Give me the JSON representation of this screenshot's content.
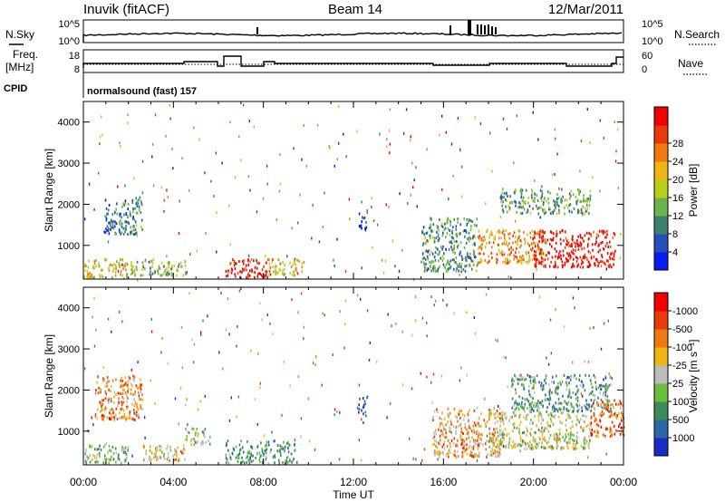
{
  "header": {
    "station": "Inuvik (fitACF)",
    "beam": "Beam 14",
    "date": "12/Mar/2011"
  },
  "noise_panel": {
    "left_label": "N.Sky",
    "right_label": "N.Search",
    "left_ticks": [
      "10^5",
      "10^0"
    ],
    "right_ticks": [
      "10^5",
      "10^0"
    ]
  },
  "freq_panel": {
    "left_label_1": "Freq.",
    "left_label_2": "[MHz]",
    "left_ticks": [
      "18",
      "8"
    ],
    "right_label": "Nave",
    "right_ticks": [
      "60",
      "0"
    ],
    "cpid_label": "CPID",
    "cpid_text": "normalsound (fast) 157"
  },
  "chart_data": [
    {
      "type": "heatmap",
      "name_printed": "",
      "ylabel": "Slant Range [km]",
      "xlabel": "",
      "x_range_hours": [
        0,
        24
      ],
      "ylim": [
        180,
        4500
      ],
      "yticks": [
        "1000",
        "2000",
        "3000",
        "4000"
      ],
      "colorbar": {
        "label": "Power [dB]",
        "ticks": [
          "4",
          "8",
          "12",
          "16",
          "20",
          "24",
          "28"
        ],
        "colors": [
          "#0a1cf0",
          "#2550b8",
          "#3d8070",
          "#6ab44a",
          "#b8cf1a",
          "#f0b414",
          "#f07a10",
          "#e83a0c",
          "#f00000"
        ]
      },
      "clusters": [
        {
          "t0": 0.0,
          "t1": 2.0,
          "r0": 250,
          "r1": 700,
          "level": 0.55
        },
        {
          "t0": 0.9,
          "t1": 2.6,
          "r0": 1300,
          "r1": 2200,
          "level": 0.25
        },
        {
          "t0": 2.0,
          "t1": 4.6,
          "r0": 300,
          "r1": 700,
          "level": 0.4
        },
        {
          "t0": 6.3,
          "t1": 8.3,
          "r0": 250,
          "r1": 700,
          "level": 0.9
        },
        {
          "t0": 8.2,
          "t1": 9.8,
          "r0": 300,
          "r1": 700,
          "level": 0.6
        },
        {
          "t0": 12.2,
          "t1": 12.6,
          "r0": 1400,
          "r1": 1900,
          "level": 0.1
        },
        {
          "t0": 15.0,
          "t1": 17.5,
          "r0": 400,
          "r1": 1700,
          "level": 0.3
        },
        {
          "t0": 17.5,
          "t1": 20.5,
          "r0": 600,
          "r1": 1400,
          "level": 0.7
        },
        {
          "t0": 20.0,
          "t1": 23.6,
          "r0": 500,
          "r1": 1400,
          "level": 0.95
        },
        {
          "t0": 18.5,
          "t1": 22.5,
          "r0": 1800,
          "r1": 2400,
          "level": 0.35
        }
      ]
    },
    {
      "type": "heatmap",
      "name_printed": "",
      "ylabel": "Slant Range [km]",
      "xlabel": "Time UT",
      "x_range_hours": [
        0,
        24
      ],
      "ylim": [
        180,
        4500
      ],
      "yticks": [
        "1000",
        "2000",
        "3000",
        "4000"
      ],
      "xticks": [
        "00:00",
        "04:00",
        "08:00",
        "12:00",
        "16:00",
        "20:00",
        "00:00"
      ],
      "colorbar": {
        "label": "Velocity [m s⁻¹]",
        "ticks": [
          "1000",
          "500",
          "100",
          "25",
          "-25",
          "-100",
          "-500",
          "-1000"
        ],
        "colors": [
          "#1a2cc8",
          "#2c68a8",
          "#3f8a5a",
          "#6abf3a",
          "#bdbdbd",
          "#f0b414",
          "#f07a10",
          "#e83a0c",
          "#f00000"
        ]
      },
      "clusters": [
        {
          "t0": 0.0,
          "t1": 2.0,
          "r0": 250,
          "r1": 700,
          "level": 0.4
        },
        {
          "t0": 0.5,
          "t1": 2.6,
          "r0": 1300,
          "r1": 2400,
          "level": 0.7
        },
        {
          "t0": 2.5,
          "t1": 4.5,
          "r0": 300,
          "r1": 700,
          "level": 0.6
        },
        {
          "t0": 4.5,
          "t1": 5.6,
          "r0": 700,
          "r1": 1100,
          "level": 0.45
        },
        {
          "t0": 6.3,
          "t1": 9.5,
          "r0": 250,
          "r1": 800,
          "level": 0.3
        },
        {
          "t0": 12.2,
          "t1": 12.6,
          "r0": 1400,
          "r1": 1900,
          "level": 0.05
        },
        {
          "t0": 15.5,
          "t1": 18.5,
          "r0": 400,
          "r1": 1600,
          "level": 0.65
        },
        {
          "t0": 18.0,
          "t1": 22.5,
          "r0": 600,
          "r1": 1500,
          "level": 0.5
        },
        {
          "t0": 19.0,
          "t1": 23.5,
          "r0": 1500,
          "r1": 2400,
          "level": 0.3
        },
        {
          "t0": 22.5,
          "t1": 24.0,
          "r0": 900,
          "r1": 1800,
          "level": 0.75
        }
      ]
    }
  ]
}
